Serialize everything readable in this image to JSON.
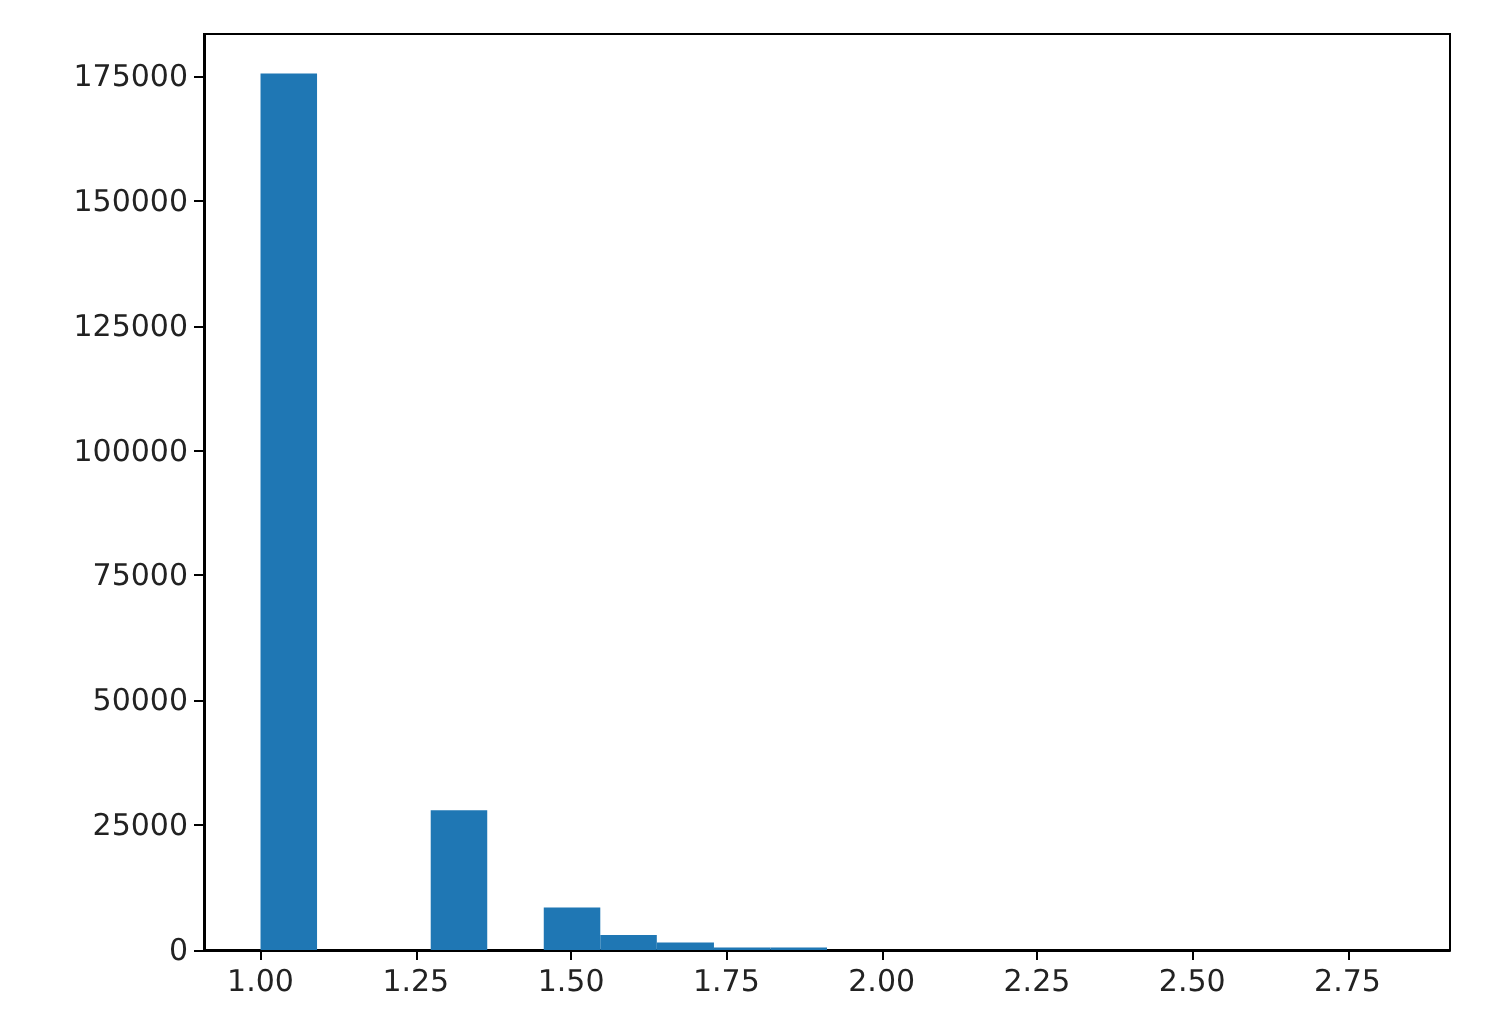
{
  "chart_data": {
    "type": "histogram",
    "color": "#1f77b4",
    "bins": [
      1.0,
      1.091,
      1.274,
      1.365,
      1.456,
      1.547,
      1.638,
      1.73,
      1.821,
      1.912
    ],
    "values": [
      175500,
      0,
      28000,
      0,
      8500,
      3000,
      1500,
      500,
      500
    ],
    "xlim": [
      0.909,
      2.915
    ],
    "xticks": [
      {
        "value": 1,
        "label": "1.00"
      },
      {
        "value": 1.25,
        "label": "1.25"
      },
      {
        "value": 1.5,
        "label": "1.50"
      },
      {
        "value": 1.75,
        "label": "1.75"
      },
      {
        "value": 2,
        "label": "2.00"
      },
      {
        "value": 2.25,
        "label": "2.25"
      },
      {
        "value": 2.5,
        "label": "2.50"
      },
      {
        "value": 2.75,
        "label": "2.75"
      }
    ],
    "ylim": [
      0,
      183400
    ],
    "yticks": [
      0,
      25000,
      50000,
      75000,
      100000,
      125000,
      150000,
      175000
    ],
    "grid": false
  }
}
